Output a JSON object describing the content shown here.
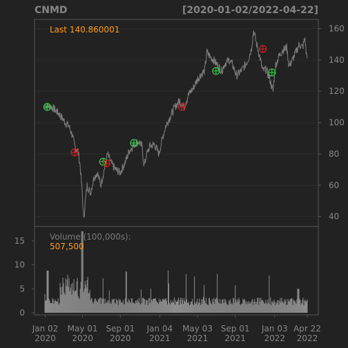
{
  "chart_data": {
    "type": "line",
    "symbol": "CNMD",
    "date_range": "[2020-01-02/2022-04-22]",
    "last_label": "Last 140.860001",
    "price": {
      "ylim": [
        30,
        165
      ],
      "yticks": [
        40,
        60,
        80,
        100,
        120,
        140,
        160
      ],
      "grid": true,
      "keypoints": [
        [
          0,
          111
        ],
        [
          6,
          110
        ],
        [
          12,
          106
        ],
        [
          18,
          100
        ],
        [
          21,
          98
        ],
        [
          24,
          92
        ],
        [
          26,
          85
        ],
        [
          29,
          82
        ],
        [
          31,
          72
        ],
        [
          33,
          52
        ],
        [
          34,
          38
        ],
        [
          35,
          46
        ],
        [
          37,
          60
        ],
        [
          40,
          55
        ],
        [
          43,
          65
        ],
        [
          46,
          68
        ],
        [
          49,
          60
        ],
        [
          52,
          70
        ],
        [
          55,
          80
        ],
        [
          57,
          76
        ],
        [
          59,
          73
        ],
        [
          62,
          70
        ],
        [
          66,
          68
        ],
        [
          70,
          74
        ],
        [
          74,
          82
        ],
        [
          78,
          86
        ],
        [
          82,
          88
        ],
        [
          85,
          85
        ],
        [
          87,
          72
        ],
        [
          89,
          79
        ],
        [
          92,
          85
        ],
        [
          96,
          86
        ],
        [
          100,
          80
        ],
        [
          103,
          90
        ],
        [
          106,
          98
        ],
        [
          110,
          104
        ],
        [
          114,
          110
        ],
        [
          118,
          114
        ],
        [
          122,
          110
        ],
        [
          126,
          118
        ],
        [
          130,
          122
        ],
        [
          134,
          128
        ],
        [
          137,
          131
        ],
        [
          140,
          133
        ],
        [
          142,
          145
        ],
        [
          145,
          142
        ],
        [
          148,
          140
        ],
        [
          152,
          136
        ],
        [
          155,
          133
        ],
        [
          158,
          138
        ],
        [
          162,
          140
        ],
        [
          165,
          136
        ],
        [
          168,
          130
        ],
        [
          172,
          133
        ],
        [
          175,
          136
        ],
        [
          178,
          140
        ],
        [
          181,
          147
        ],
        [
          183,
          159
        ],
        [
          185,
          152
        ],
        [
          187,
          146
        ],
        [
          189,
          140
        ],
        [
          191,
          133
        ],
        [
          194,
          134
        ],
        [
          197,
          128
        ],
        [
          200,
          120
        ],
        [
          202,
          136
        ],
        [
          205,
          142
        ],
        [
          208,
          146
        ],
        [
          212,
          148
        ],
        [
          214,
          136
        ],
        [
          217,
          140
        ],
        [
          220,
          145
        ],
        [
          223,
          150
        ],
        [
          226,
          148
        ],
        [
          228,
          154
        ],
        [
          229,
          145
        ],
        [
          230,
          141
        ]
      ],
      "buy_markers": [
        [
          2,
          110
        ],
        [
          51,
          75
        ],
        [
          78,
          87
        ],
        [
          150,
          133
        ],
        [
          199,
          132
        ]
      ],
      "sell_markers": [
        [
          26,
          81
        ],
        [
          54,
          74
        ],
        [
          120,
          110
        ],
        [
          191,
          147
        ]
      ]
    },
    "volume": {
      "label": "Volume (100,000s):",
      "last_value": "507,500",
      "ylim": [
        0,
        17
      ],
      "yticks": [
        0,
        5,
        10,
        15
      ]
    },
    "x_tick_labels": [
      {
        "month": "Jan 02",
        "year": "2020"
      },
      {
        "month": "May 01",
        "year": "2020"
      },
      {
        "month": "Sep 01",
        "year": "2020"
      },
      {
        "month": "Jan 04",
        "year": "2021"
      },
      {
        "month": "May 03",
        "year": "2021"
      },
      {
        "month": "Sep 01",
        "year": "2021"
      },
      {
        "month": "Jan 03",
        "year": "2022"
      },
      {
        "month": "Apr 22",
        "year": "2022"
      }
    ],
    "x_tick_index": [
      0,
      22,
      44,
      67,
      89,
      111,
      134,
      153
    ],
    "x_total": 154,
    "colors": {
      "background": "#222222",
      "price_line": "#7a7a7a",
      "buy": "#2ecc40",
      "sell": "#cc2222",
      "volume_bar": "#8c8c8c",
      "annotation": "#ff9a1f"
    }
  }
}
